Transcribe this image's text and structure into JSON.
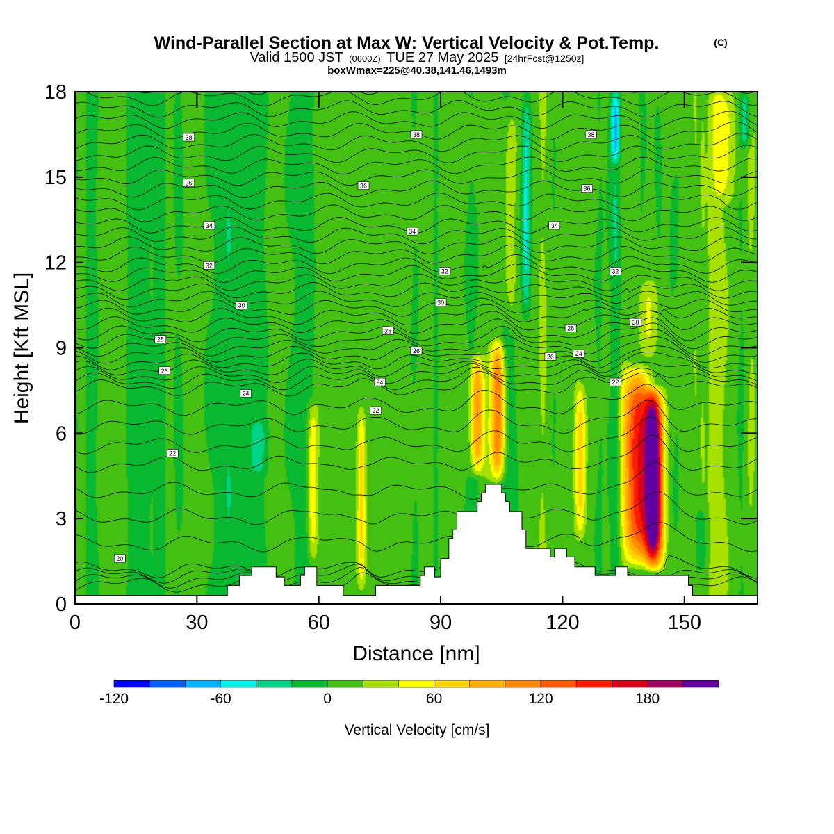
{
  "chart_data": {
    "type": "heatmap",
    "title": "Wind-Parallel Section at Max W: Vertical Velocity & Pot.Temp.",
    "title_mark": "(C)",
    "subtitle": {
      "valid_label": "Valid 1500 JST",
      "utc": "(0600Z)",
      "date": "TUE 27 May 2025",
      "forecast": "[24hrFcst@1250z]"
    },
    "subtitle2": "boxWmax=225@40.38,141.46,1493m",
    "xlabel": "Distance [nm]",
    "ylabel": "Height [Kft MSL]",
    "xlim": [
      0,
      168
    ],
    "ylim": [
      0,
      18
    ],
    "x_ticks": [
      0,
      30,
      60,
      90,
      120,
      150
    ],
    "y_ticks": [
      0,
      3,
      6,
      9,
      12,
      15,
      18
    ],
    "colorbar": {
      "label": "Vertical Velocity [cm/s]",
      "range": [
        -120,
        220
      ],
      "tick_labels": [
        -120,
        -60,
        0,
        60,
        120,
        180
      ],
      "colors": [
        "#0000ff",
        "#0060ff",
        "#00b4ff",
        "#00f0e8",
        "#00d488",
        "#08b830",
        "#44c012",
        "#a8e000",
        "#ffff00",
        "#ffd400",
        "#ffae00",
        "#ff8800",
        "#ff5a00",
        "#ff1a00",
        "#d80018",
        "#a00060",
        "#6000a0"
      ]
    },
    "background_velocity": 0,
    "updrafts": [
      {
        "x": 58.5,
        "width": 1.2,
        "base": 1.4,
        "top": 7.2,
        "w_max": 58
      },
      {
        "x": 70.5,
        "width": 1.1,
        "base": 0.5,
        "top": 7.0,
        "w_max": 62
      },
      {
        "x": 99.0,
        "width": 1.6,
        "base": 4.5,
        "top": 8.8,
        "w_max": 95
      },
      {
        "x": 104.0,
        "width": 1.8,
        "base": 4.3,
        "top": 9.3,
        "w_max": 110
      },
      {
        "x": 124.5,
        "width": 1.4,
        "base": 2.2,
        "top": 7.8,
        "w_max": 62
      },
      {
        "x": 138.5,
        "width": 3.4,
        "base": 1.3,
        "top": 8.4,
        "w_max": 150
      },
      {
        "x": 142.5,
        "width": 2.2,
        "base": 1.2,
        "top": 7.6,
        "w_max": 225
      },
      {
        "x": 107.0,
        "width": 2.0,
        "base": 9.5,
        "top": 18.0,
        "w_max": 40
      },
      {
        "x": 141.0,
        "width": 2.5,
        "base": 8.5,
        "top": 11.5,
        "w_max": 40
      },
      {
        "x": 160.0,
        "width": 3.0,
        "base": 14.0,
        "top": 18.0,
        "w_max": 30
      }
    ],
    "downdrafts": [
      {
        "x": 45.0,
        "width": 2.0,
        "base": 4.5,
        "top": 6.5,
        "w_min": -30
      },
      {
        "x": 111.0,
        "width": 1.2,
        "base": 10.0,
        "top": 18.0,
        "w_min": -50
      },
      {
        "x": 133.0,
        "width": 1.2,
        "base": 15.5,
        "top": 18.0,
        "w_min": -55
      },
      {
        "x": 165.0,
        "width": 1.2,
        "base": 16.0,
        "top": 18.0,
        "w_min": -35
      },
      {
        "x": 154.0,
        "width": 1.5,
        "base": 1.0,
        "top": 3.5,
        "w_min": -30
      }
    ],
    "terrain": [
      [
        0,
        0.3
      ],
      [
        37.5,
        0.3
      ],
      [
        37.5,
        0.65
      ],
      [
        40.5,
        0.65
      ],
      [
        40.5,
        1.0
      ],
      [
        43.5,
        1.0
      ],
      [
        43.5,
        1.3
      ],
      [
        49.5,
        1.3
      ],
      [
        49.5,
        0.95
      ],
      [
        51.5,
        0.95
      ],
      [
        51.5,
        0.65
      ],
      [
        55.5,
        0.65
      ],
      [
        55.5,
        1.0
      ],
      [
        56.5,
        1.0
      ],
      [
        56.5,
        1.3
      ],
      [
        59.5,
        1.3
      ],
      [
        59.5,
        0.65
      ],
      [
        66,
        0.65
      ],
      [
        66,
        0.3
      ],
      [
        74,
        0.3
      ],
      [
        74,
        0.65
      ],
      [
        85,
        0.65
      ],
      [
        85,
        1.0
      ],
      [
        86,
        1.0
      ],
      [
        86,
        1.3
      ],
      [
        88.5,
        1.3
      ],
      [
        88.5,
        0.95
      ],
      [
        90,
        0.95
      ],
      [
        90,
        1.6
      ],
      [
        92,
        1.6
      ],
      [
        92,
        2.3
      ],
      [
        93,
        2.3
      ],
      [
        93,
        2.6
      ],
      [
        94,
        2.6
      ],
      [
        94,
        3.25
      ],
      [
        99,
        3.25
      ],
      [
        99,
        3.6
      ],
      [
        100,
        3.6
      ],
      [
        100,
        3.9
      ],
      [
        101,
        3.9
      ],
      [
        101,
        4.2
      ],
      [
        105,
        4.2
      ],
      [
        105,
        3.9
      ],
      [
        106,
        3.9
      ],
      [
        106,
        3.6
      ],
      [
        107,
        3.6
      ],
      [
        107,
        3.25
      ],
      [
        110,
        3.25
      ],
      [
        110,
        2.6
      ],
      [
        111,
        2.6
      ],
      [
        111,
        1.95
      ],
      [
        117,
        1.95
      ],
      [
        117,
        1.65
      ],
      [
        118,
        1.65
      ],
      [
        118,
        1.95
      ],
      [
        121,
        1.95
      ],
      [
        121,
        1.65
      ],
      [
        123,
        1.65
      ],
      [
        123,
        1.3
      ],
      [
        128,
        1.3
      ],
      [
        128,
        1.0
      ],
      [
        133,
        1.0
      ],
      [
        133,
        1.3
      ],
      [
        136,
        1.3
      ],
      [
        136,
        1.0
      ],
      [
        151,
        1.0
      ],
      [
        151,
        0.65
      ],
      [
        152,
        0.65
      ],
      [
        152,
        0.3
      ],
      [
        168,
        0.3
      ]
    ],
    "theta_contours": {
      "interval_deg": 0.5,
      "levels_base": [
        [
          20,
          1.2
        ],
        [
          22,
          4.9
        ],
        [
          24,
          7.6
        ],
        [
          26,
          8.5
        ],
        [
          28,
          9.5
        ],
        [
          30,
          10.7
        ],
        [
          32,
          11.9
        ],
        [
          34,
          13.3
        ],
        [
          36,
          15.0
        ],
        [
          38,
          16.6
        ]
      ],
      "labels": [
        {
          "text": "38",
          "x": 28,
          "y": 16.4
        },
        {
          "text": "38",
          "x": 84,
          "y": 16.5
        },
        {
          "text": "38",
          "x": 127,
          "y": 16.5
        },
        {
          "text": "36",
          "x": 28,
          "y": 14.8
        },
        {
          "text": "36",
          "x": 71,
          "y": 14.7
        },
        {
          "text": "36",
          "x": 126,
          "y": 14.6
        },
        {
          "text": "34",
          "x": 33,
          "y": 13.3
        },
        {
          "text": "34",
          "x": 83,
          "y": 13.1
        },
        {
          "text": "34",
          "x": 118,
          "y": 13.3
        },
        {
          "text": "32",
          "x": 33,
          "y": 11.9
        },
        {
          "text": "32",
          "x": 91,
          "y": 11.7
        },
        {
          "text": "32",
          "x": 133,
          "y": 11.7
        },
        {
          "text": "30",
          "x": 41,
          "y": 10.5
        },
        {
          "text": "30",
          "x": 90,
          "y": 10.6
        },
        {
          "text": "30",
          "x": 138,
          "y": 9.9
        },
        {
          "text": "28",
          "x": 21,
          "y": 9.3
        },
        {
          "text": "28",
          "x": 77,
          "y": 9.6
        },
        {
          "text": "28",
          "x": 122,
          "y": 9.7
        },
        {
          "text": "26",
          "x": 22,
          "y": 8.2
        },
        {
          "text": "26",
          "x": 84,
          "y": 8.9
        },
        {
          "text": "26",
          "x": 117,
          "y": 8.7
        },
        {
          "text": "24",
          "x": 42,
          "y": 7.4
        },
        {
          "text": "24",
          "x": 75,
          "y": 7.8
        },
        {
          "text": "24",
          "x": 124,
          "y": 8.8
        },
        {
          "text": "22",
          "x": 74,
          "y": 6.8
        },
        {
          "text": "22",
          "x": 24,
          "y": 5.3
        },
        {
          "text": "22",
          "x": 133,
          "y": 7.8
        },
        {
          "text": "20",
          "x": 11,
          "y": 1.6
        }
      ]
    },
    "grid": false,
    "legend": "colorbar-bottom"
  }
}
